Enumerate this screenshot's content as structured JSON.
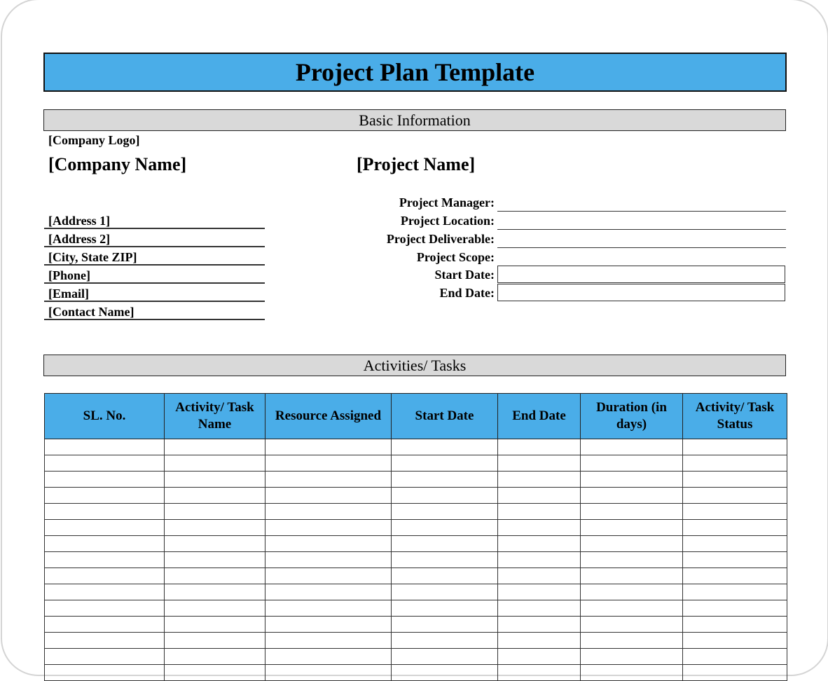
{
  "title": "Project Plan Template",
  "basic_info": {
    "section_title": "Basic Information",
    "company_logo": "[Company Logo]",
    "company_name": "[Company Name]",
    "project_name": "[Project Name]",
    "address_lines": [
      "[Address 1]",
      "[Address 2]",
      "[City, State ZIP]",
      "[Phone]",
      "[Email]",
      "[Contact Name]"
    ],
    "fields": [
      {
        "label": "Project Manager:",
        "value": ""
      },
      {
        "label": "Project Location:",
        "value": ""
      },
      {
        "label": "Project Deliverable:",
        "value": ""
      },
      {
        "label": "Project Scope:",
        "value": ""
      },
      {
        "label": "Start Date:",
        "value": ""
      },
      {
        "label": "End Date:",
        "value": ""
      }
    ]
  },
  "activities": {
    "section_title": "Activities/ Tasks",
    "columns": [
      "SL. No.",
      "Activity/ Task Name",
      "Resource Assigned",
      "Start Date",
      "End Date",
      "Duration (in days)",
      "Activity/ Task Status"
    ],
    "rows": [
      [
        "",
        "",
        "",
        "",
        "",
        "",
        ""
      ],
      [
        "",
        "",
        "",
        "",
        "",
        "",
        ""
      ],
      [
        "",
        "",
        "",
        "",
        "",
        "",
        ""
      ],
      [
        "",
        "",
        "",
        "",
        "",
        "",
        ""
      ],
      [
        "",
        "",
        "",
        "",
        "",
        "",
        ""
      ],
      [
        "",
        "",
        "",
        "",
        "",
        "",
        ""
      ],
      [
        "",
        "",
        "",
        "",
        "",
        "",
        ""
      ],
      [
        "",
        "",
        "",
        "",
        "",
        "",
        ""
      ],
      [
        "",
        "",
        "",
        "",
        "",
        "",
        ""
      ],
      [
        "",
        "",
        "",
        "",
        "",
        "",
        ""
      ],
      [
        "",
        "",
        "",
        "",
        "",
        "",
        ""
      ],
      [
        "",
        "",
        "",
        "",
        "",
        "",
        ""
      ],
      [
        "",
        "",
        "",
        "",
        "",
        "",
        ""
      ],
      [
        "",
        "",
        "",
        "",
        "",
        "",
        ""
      ],
      [
        "",
        "",
        "",
        "",
        "",
        "",
        ""
      ]
    ]
  },
  "colors": {
    "header_blue": "#4aade8",
    "section_gray": "#d9d9d9"
  }
}
